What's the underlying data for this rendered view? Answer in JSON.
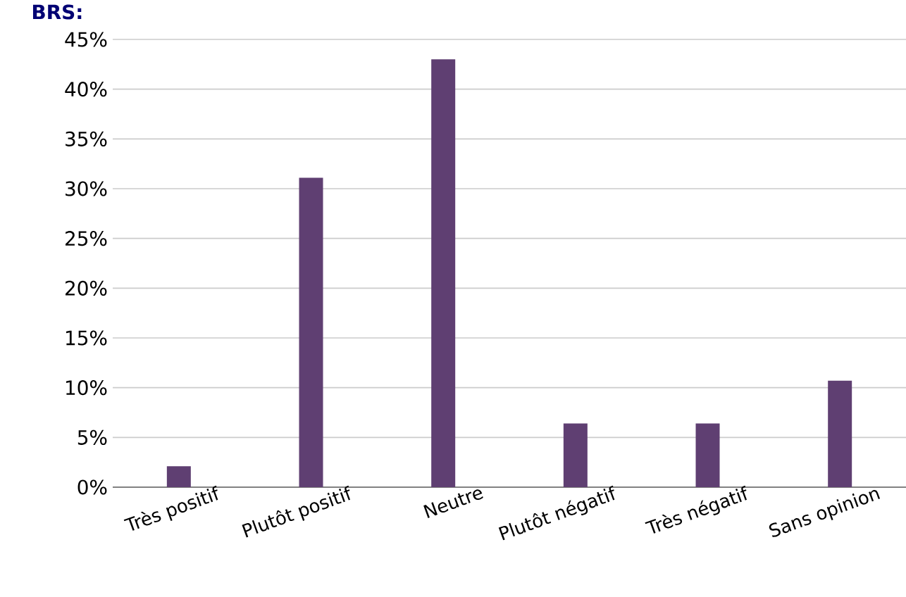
{
  "chart_data": {
    "type": "bar",
    "title": "BRS:",
    "categories": [
      "Très positif",
      "Plutôt positif",
      "Neutre",
      "Plutôt négatif",
      "Très négatif",
      "Sans opinion"
    ],
    "values": [
      2.1,
      31.1,
      43.0,
      6.4,
      6.4,
      10.7
    ],
    "color": "#5f3f72",
    "ylim": [
      0,
      45
    ],
    "yticks": [
      {
        "value": 0,
        "label": "0%"
      },
      {
        "value": 5,
        "label": "5%"
      },
      {
        "value": 10,
        "label": "10%"
      },
      {
        "value": 15,
        "label": "15%"
      },
      {
        "value": 20,
        "label": "20%"
      },
      {
        "value": 25,
        "label": "25%"
      },
      {
        "value": 30,
        "label": "30%"
      },
      {
        "value": 35,
        "label": "35%"
      },
      {
        "value": 40,
        "label": "40%"
      },
      {
        "value": 45,
        "label": "45%"
      }
    ],
    "grid": "y"
  }
}
